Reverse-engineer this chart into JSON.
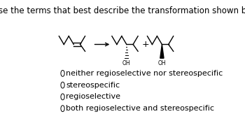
{
  "title": "Choose the terms that best describe the transformation shown below:",
  "title_fontsize": 8.5,
  "bg_color": "#ffffff",
  "options": [
    "neither regioselective nor stereospecific",
    "stereospecific",
    "regioselective",
    "both regioselective and stereospecific"
  ],
  "options_fontsize": 8,
  "figsize": [
    3.5,
    1.93
  ],
  "dpi": 100
}
